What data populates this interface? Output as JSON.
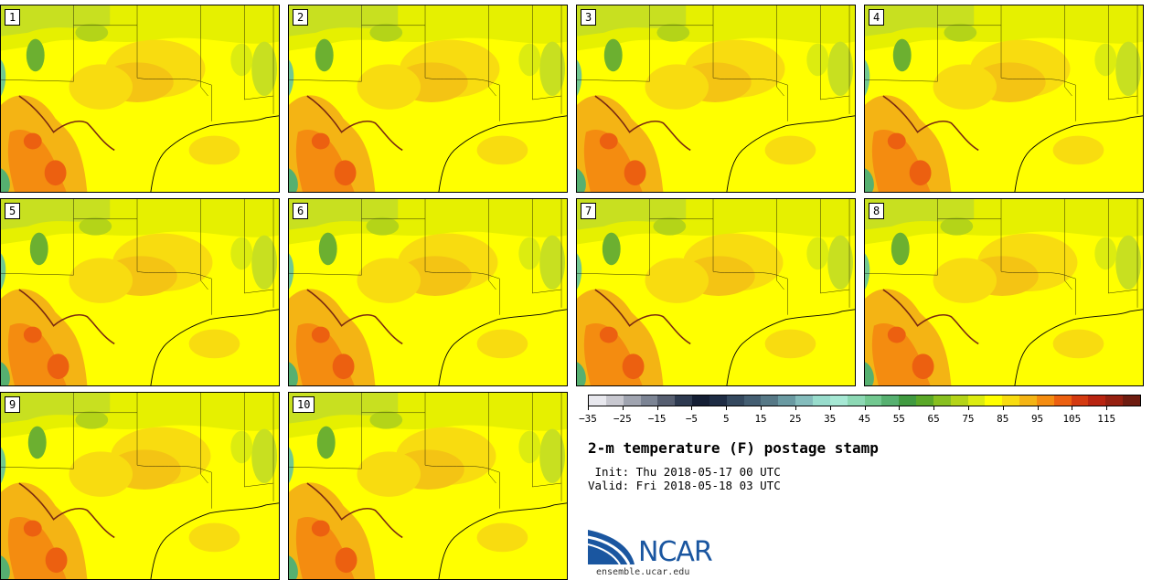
{
  "panels": [
    {
      "label": "1"
    },
    {
      "label": "2"
    },
    {
      "label": "3"
    },
    {
      "label": "4"
    },
    {
      "label": "5"
    },
    {
      "label": "6"
    },
    {
      "label": "7"
    },
    {
      "label": "8"
    },
    {
      "label": "9"
    },
    {
      "label": "10"
    }
  ],
  "colorbar": {
    "colors": [
      "#e8e8ee",
      "#c8c8d0",
      "#a0a4b0",
      "#7c8494",
      "#565e70",
      "#2e3a50",
      "#141e34",
      "#1e2c44",
      "#34485e",
      "#445e72",
      "#567886",
      "#6a9aa2",
      "#84bcbc",
      "#98dccc",
      "#a6e8d4",
      "#8cd8b4",
      "#72c890",
      "#56b070",
      "#409a40",
      "#5aa828",
      "#88c020",
      "#b4d418",
      "#dcec10",
      "#ffff00",
      "#f8dc10",
      "#f4b414",
      "#f48c10",
      "#ec6010",
      "#d43a10",
      "#b82410",
      "#962010",
      "#6e1c10"
    ],
    "tick_labels": [
      "−35",
      "−25",
      "−15",
      "−5",
      "5",
      "15",
      "25",
      "35",
      "45",
      "55",
      "65",
      "75",
      "85",
      "95",
      "105",
      "115"
    ]
  },
  "title": "2-m temperature (F) postage stamp",
  "init": " Init: Thu 2018-05-17 00 UTC",
  "valid": "Valid: Fri 2018-05-18 03 UTC",
  "logo": {
    "text": "NCAR",
    "url_text": "ensemble.ucar.edu"
  }
}
